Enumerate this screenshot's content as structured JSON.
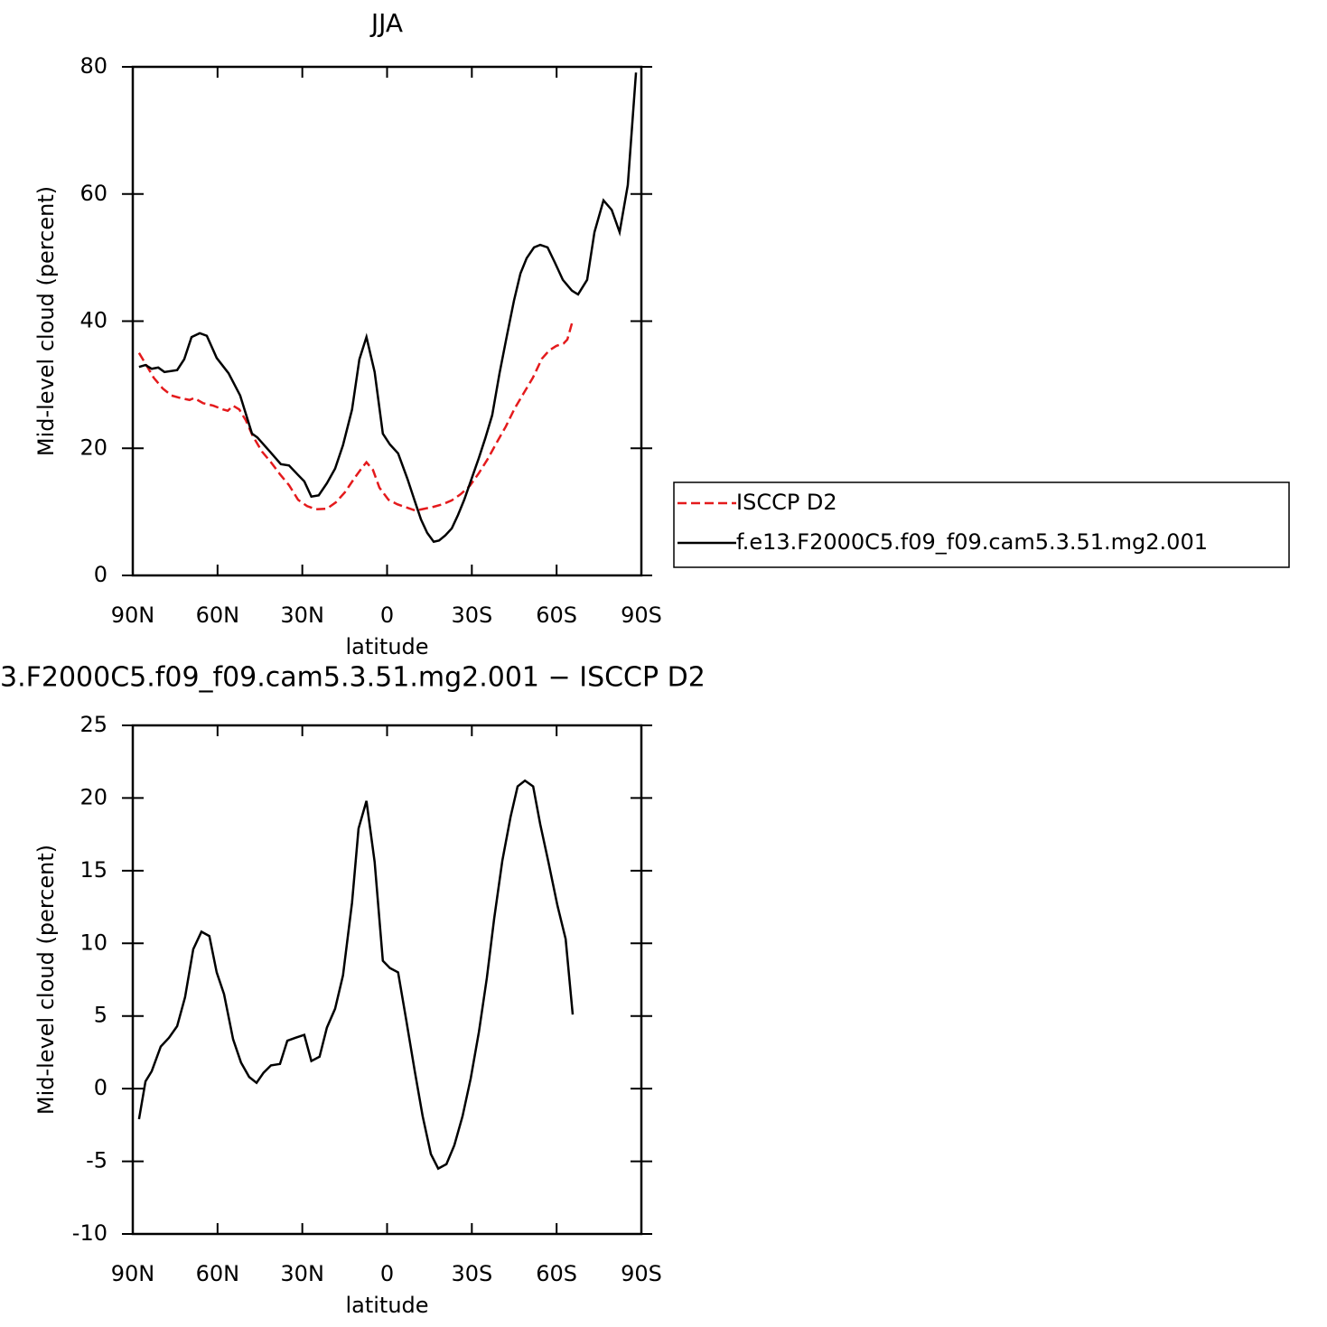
{
  "chart_data": [
    {
      "type": "line",
      "title": "JJA",
      "xlabel": "latitude",
      "ylabel": "Mid-level cloud (percent)",
      "xlim": [
        90,
        -90
      ],
      "xticks": [
        {
          "value": 90,
          "label": "90N"
        },
        {
          "value": 60,
          "label": "60N"
        },
        {
          "value": 30,
          "label": "30N"
        },
        0,
        {
          "value": -30,
          "label": "30S"
        },
        {
          "value": -60,
          "label": "60S"
        },
        {
          "value": -90,
          "label": "90S"
        }
      ],
      "ylim": [
        0,
        80
      ],
      "yticks": [
        0,
        20,
        40,
        60,
        80
      ],
      "legend": "right",
      "series": [
        {
          "name": "ISCCP D2",
          "color": "#e41a1c",
          "style": "dashed",
          "x": [
            87.8,
            85.5,
            82.6,
            79.4,
            76.3,
            73.1,
            69.9,
            68.3,
            65.1,
            61.5,
            58.0,
            56.4,
            54.5,
            52.3,
            50.0,
            47.5,
            44.3,
            41.1,
            37.9,
            34.7,
            31.5,
            28.3,
            25.1,
            21.3,
            18.1,
            14.9,
            11.7,
            9.1,
            7.3,
            5.0,
            2.7,
            -0.5,
            -3.6,
            -6.8,
            -10.0,
            -13.3,
            -16.5,
            -19.7,
            -22.9,
            -26.1,
            -29.3,
            -32.5,
            -35.6,
            -38.8,
            -42.0,
            -45.2,
            -48.4,
            -51.6,
            -54.8,
            -57.4,
            -59.9,
            -62.5,
            -63.8,
            -65.7
          ],
          "values": [
            35.0,
            33.3,
            31.1,
            29.4,
            28.3,
            27.9,
            27.6,
            27.9,
            27.1,
            26.7,
            26.1,
            25.9,
            26.7,
            26.1,
            24.4,
            21.9,
            19.5,
            17.8,
            15.9,
            14.2,
            11.9,
            10.9,
            10.4,
            10.5,
            11.5,
            13.1,
            15.2,
            16.8,
            17.8,
            16.6,
            13.8,
            11.9,
            11.2,
            10.7,
            10.2,
            10.5,
            10.8,
            11.2,
            11.8,
            12.8,
            14.1,
            16.1,
            18.3,
            20.9,
            23.4,
            26.3,
            28.7,
            31.1,
            34.1,
            35.4,
            36.1,
            36.5,
            37.1,
            40.1
          ]
        },
        {
          "name": "f.e13.F2000C5.f09_f09.cam5.3.51.mg2.001",
          "color": "#000000",
          "style": "solid",
          "x": [
            87.8,
            85.5,
            83.3,
            81.0,
            78.8,
            74.3,
            71.8,
            69.2,
            66.3,
            63.8,
            60.3,
            56.1,
            52.0,
            47.8,
            45.9,
            41.5,
            37.6,
            34.7,
            31.5,
            29.3,
            26.8,
            24.2,
            21.3,
            18.4,
            15.6,
            12.4,
            9.8,
            7.3,
            4.4,
            1.5,
            -1.0,
            -3.9,
            -7.2,
            -9.8,
            -12.0,
            -14.2,
            -16.5,
            -18.4,
            -20.6,
            -22.9,
            -25.1,
            -27.3,
            -29.9,
            -32.5,
            -34.7,
            -37.2,
            -39.8,
            -42.4,
            -44.9,
            -47.2,
            -49.4,
            -52.0,
            -54.2,
            -56.8,
            -59.4,
            -62.2,
            -65.4,
            -67.6,
            -70.8,
            -73.4,
            -76.6,
            -79.5,
            -82.3,
            -85.2,
            -88.1
          ],
          "values": [
            32.8,
            33.1,
            32.5,
            32.7,
            32.0,
            32.3,
            34.0,
            37.5,
            38.1,
            37.7,
            34.2,
            31.8,
            28.3,
            22.3,
            21.7,
            19.5,
            17.5,
            17.3,
            15.8,
            14.8,
            12.4,
            12.6,
            14.5,
            16.8,
            20.5,
            26.1,
            34.0,
            37.5,
            32.0,
            22.3,
            20.6,
            19.2,
            15.2,
            11.7,
            8.8,
            6.7,
            5.3,
            5.5,
            6.3,
            7.4,
            9.5,
            11.9,
            15.2,
            18.5,
            21.5,
            25.2,
            31.8,
            37.7,
            43.2,
            47.5,
            49.9,
            51.6,
            52.0,
            51.6,
            49.2,
            46.5,
            44.8,
            44.2,
            46.5,
            54.0,
            59.0,
            57.5,
            54.0,
            61.4,
            79.1
          ]
        }
      ]
    },
    {
      "type": "line",
      "title": "3.F2000C5.f09_f09.cam5.3.51.mg2.001 − ISCCP D2",
      "xlabel": "latitude",
      "ylabel": "Mid-level cloud (percent)",
      "xlim": [
        90,
        -90
      ],
      "xticks": [
        {
          "value": 90,
          "label": "90N"
        },
        {
          "value": 60,
          "label": "60N"
        },
        {
          "value": 30,
          "label": "30N"
        },
        0,
        {
          "value": -30,
          "label": "30S"
        },
        {
          "value": -60,
          "label": "60S"
        },
        {
          "value": -90,
          "label": "90S"
        }
      ],
      "ylim": [
        -10,
        25
      ],
      "yticks": [
        -10,
        -5,
        0,
        5,
        10,
        15,
        20,
        25
      ],
      "series": [
        {
          "color": "#000000",
          "style": "solid",
          "x": [
            87.8,
            85.5,
            83.3,
            80.1,
            77.2,
            74.3,
            71.5,
            68.6,
            65.7,
            62.9,
            60.3,
            57.7,
            54.5,
            51.7,
            48.8,
            46.2,
            43.7,
            41.1,
            37.9,
            35.3,
            32.4,
            29.3,
            26.8,
            23.9,
            21.3,
            18.4,
            15.6,
            12.4,
            10.1,
            7.3,
            4.4,
            1.5,
            -1.0,
            -3.9,
            -6.8,
            -9.8,
            -12.6,
            -15.5,
            -18.1,
            -21.0,
            -23.8,
            -26.7,
            -29.6,
            -32.5,
            -35.3,
            -37.9,
            -40.8,
            -43.7,
            -46.2,
            -48.8,
            -51.7,
            -54.2,
            -57.1,
            -60.3,
            -63.2,
            -65.7
          ],
          "values": [
            -2.1,
            0.5,
            1.2,
            2.9,
            3.5,
            4.3,
            6.3,
            9.6,
            10.8,
            10.5,
            8.0,
            6.5,
            3.4,
            1.8,
            0.8,
            0.4,
            1.1,
            1.6,
            1.7,
            3.3,
            3.5,
            3.7,
            1.9,
            2.2,
            4.2,
            5.5,
            7.8,
            12.8,
            17.9,
            19.8,
            15.6,
            8.8,
            8.3,
            8.0,
            4.7,
            1.2,
            -1.9,
            -4.5,
            -5.5,
            -5.2,
            -3.9,
            -1.9,
            0.7,
            3.9,
            7.6,
            11.7,
            15.7,
            18.7,
            20.8,
            21.2,
            20.8,
            18.2,
            15.6,
            12.6,
            10.3,
            5.1
          ]
        }
      ]
    }
  ]
}
